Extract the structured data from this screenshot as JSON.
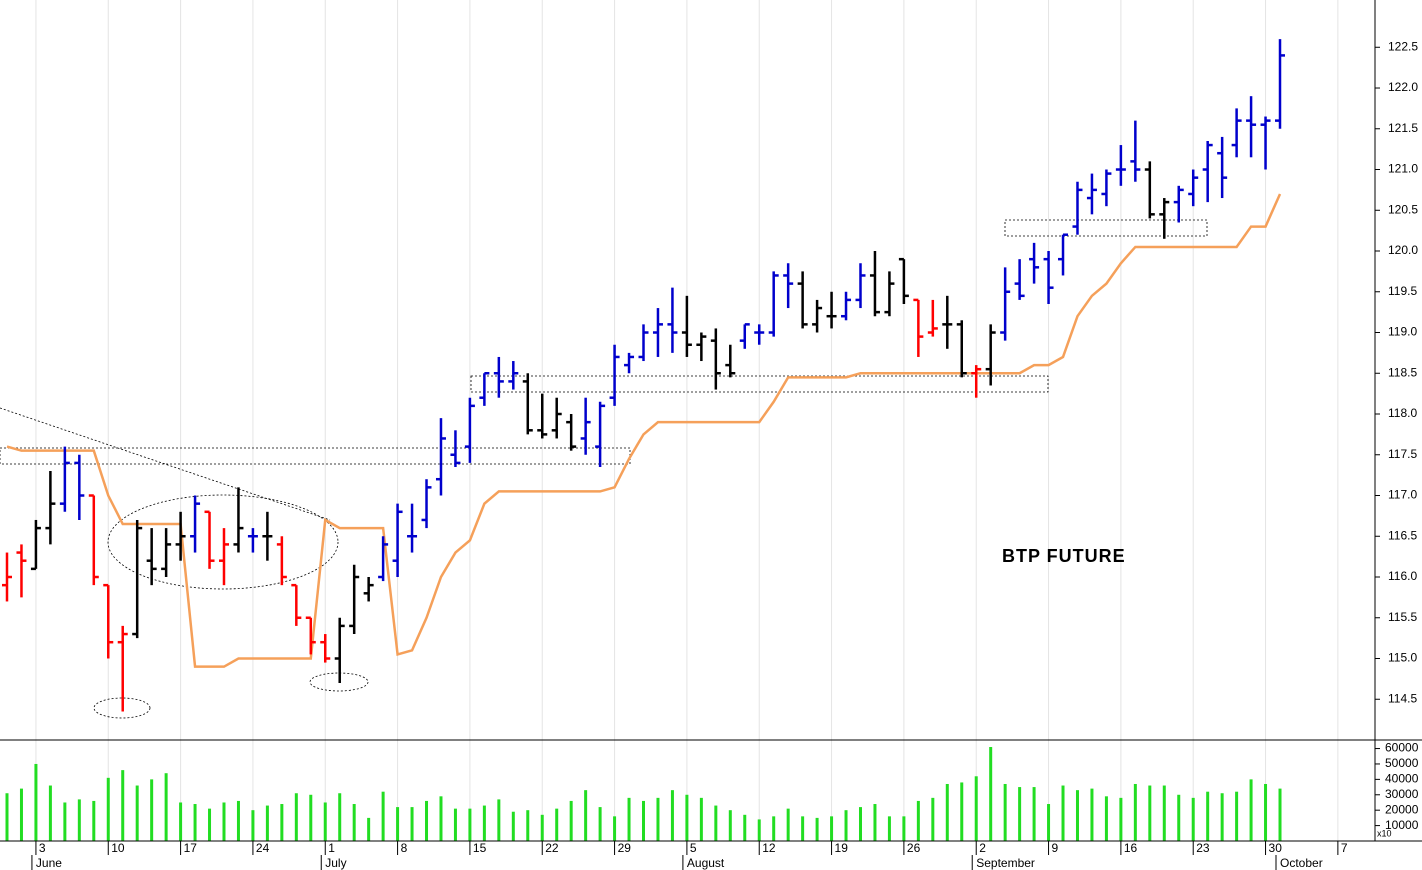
{
  "chart_data": {
    "type": "ohlc",
    "title": "BTP FUTURE",
    "categories": [
      null,
      null,
      "3",
      null,
      null,
      null,
      null,
      "10",
      null,
      null,
      null,
      null,
      "17",
      null,
      null,
      null,
      null,
      "24",
      null,
      null,
      null,
      null,
      "1",
      null,
      null,
      null,
      null,
      "8",
      null,
      null,
      null,
      null,
      "15",
      null,
      null,
      null,
      null,
      "22",
      null,
      null,
      null,
      null,
      "29",
      null,
      null,
      null,
      null,
      "5",
      null,
      null,
      null,
      null,
      "12",
      null,
      null,
      null,
      null,
      "19",
      null,
      null,
      null,
      null,
      "26",
      null,
      null,
      null,
      null,
      "2",
      null,
      null,
      null,
      null,
      "9",
      null,
      null,
      null,
      null,
      "16",
      null,
      null,
      null,
      null,
      "23",
      null,
      null,
      null,
      null,
      "30",
      null,
      null,
      null,
      null,
      "7",
      null,
      null
    ],
    "months": [
      {
        "label": "June",
        "index": 2
      },
      {
        "label": "July",
        "index": 22
      },
      {
        "label": "August",
        "index": 47
      },
      {
        "label": "September",
        "index": 67
      },
      {
        "label": "October",
        "index": 88
      }
    ],
    "open": [
      115.9,
      116.3,
      116.1,
      116.6,
      116.9,
      117.4,
      117.0,
      115.9,
      115.2,
      115.3,
      116.2,
      116.1,
      116.4,
      116.5,
      116.8,
      116.2,
      116.4,
      116.5,
      116.5,
      116.4,
      115.9,
      115.5,
      115.2,
      115.0,
      115.4,
      115.8,
      116.0,
      116.2,
      116.5,
      116.7,
      117.2,
      117.5,
      117.6,
      118.2,
      118.5,
      118.4,
      118.4,
      117.8,
      117.8,
      117.9,
      117.7,
      117.6,
      118.2,
      118.6,
      118.7,
      119.0,
      119.1,
      119.0,
      118.85,
      118.9,
      118.6,
      118.9,
      119.0,
      119.0,
      119.7,
      119.6,
      119.1,
      119.2,
      119.2,
      119.4,
      119.7,
      119.25,
      119.9,
      119.4,
      119.0,
      119.1,
      119.1,
      118.5,
      118.55,
      119.0,
      119.6,
      119.9,
      119.9,
      119.9,
      120.3,
      120.65,
      120.7,
      121.0,
      121.1,
      121.0,
      120.45,
      120.6,
      120.7,
      121.0,
      121.2,
      121.3,
      121.6,
      121.55,
      121.6,
      null,
      null,
      null,
      null,
      null,
      null
    ],
    "high": [
      116.3,
      116.4,
      116.7,
      117.3,
      117.6,
      117.5,
      117.0,
      115.9,
      115.4,
      116.7,
      116.6,
      116.6,
      116.8,
      117.0,
      116.8,
      116.6,
      117.1,
      116.6,
      116.8,
      116.5,
      115.9,
      115.5,
      115.3,
      115.5,
      116.15,
      116.0,
      116.5,
      116.9,
      116.9,
      117.2,
      117.95,
      117.8,
      118.2,
      118.5,
      118.7,
      118.65,
      118.5,
      118.25,
      118.2,
      118.0,
      118.2,
      118.15,
      118.85,
      118.75,
      119.1,
      119.3,
      119.55,
      119.45,
      119.0,
      119.05,
      118.85,
      119.1,
      119.1,
      119.75,
      119.85,
      119.75,
      119.4,
      119.5,
      119.5,
      119.85,
      120.0,
      119.75,
      119.9,
      119.4,
      119.4,
      119.45,
      119.15,
      118.6,
      119.1,
      119.8,
      119.9,
      120.1,
      120.0,
      120.2,
      120.85,
      120.95,
      121.0,
      121.3,
      121.6,
      121.1,
      120.65,
      120.8,
      121.0,
      121.35,
      121.4,
      121.75,
      121.9,
      121.65,
      122.6,
      null,
      null,
      null,
      null,
      null,
      null
    ],
    "low": [
      115.7,
      115.75,
      116.1,
      116.4,
      116.8,
      116.7,
      115.9,
      115.0,
      114.35,
      115.25,
      115.9,
      116.0,
      116.2,
      116.3,
      116.1,
      115.9,
      116.3,
      116.3,
      116.2,
      115.9,
      115.4,
      115.05,
      114.95,
      114.7,
      115.3,
      115.7,
      115.95,
      116.0,
      116.3,
      116.6,
      117.0,
      117.35,
      117.4,
      118.1,
      118.2,
      118.3,
      117.75,
      117.7,
      117.7,
      117.55,
      117.5,
      117.35,
      118.1,
      118.5,
      118.65,
      118.7,
      118.75,
      118.7,
      118.65,
      118.3,
      118.45,
      118.8,
      118.85,
      118.95,
      119.3,
      119.05,
      119.0,
      119.05,
      119.15,
      119.3,
      119.2,
      119.2,
      119.35,
      118.7,
      118.95,
      118.8,
      118.45,
      118.2,
      118.35,
      118.9,
      119.4,
      119.6,
      119.35,
      119.7,
      120.2,
      120.45,
      120.55,
      120.8,
      120.85,
      120.4,
      120.15,
      120.35,
      120.55,
      120.6,
      120.65,
      121.15,
      121.15,
      121.0,
      121.5,
      null,
      null,
      null,
      null,
      null,
      null
    ],
    "close": [
      116.0,
      116.2,
      116.6,
      116.9,
      117.4,
      117.0,
      116.0,
      115.2,
      115.3,
      116.6,
      116.1,
      116.4,
      116.5,
      116.9,
      116.2,
      116.4,
      116.6,
      116.5,
      116.5,
      116.0,
      115.5,
      115.2,
      115.0,
      115.4,
      116.0,
      115.9,
      116.4,
      116.8,
      116.5,
      117.1,
      117.7,
      117.4,
      118.1,
      118.5,
      118.4,
      118.5,
      117.8,
      117.75,
      118.0,
      117.6,
      117.9,
      118.1,
      118.7,
      118.7,
      119.0,
      119.1,
      119.0,
      118.85,
      118.95,
      118.5,
      118.5,
      119.1,
      119.0,
      119.7,
      119.6,
      119.1,
      119.3,
      119.2,
      119.4,
      119.7,
      119.25,
      119.6,
      119.45,
      118.95,
      119.05,
      119.1,
      118.5,
      118.55,
      119.0,
      119.5,
      119.45,
      119.8,
      119.55,
      120.2,
      120.75,
      120.75,
      120.95,
      121.0,
      121.0,
      120.45,
      120.6,
      120.75,
      120.9,
      121.3,
      120.9,
      121.6,
      121.55,
      121.6,
      122.4,
      null,
      null,
      null,
      null,
      null,
      null
    ],
    "bar_colors": [
      "#ff0000",
      "#ff0000",
      "#000000",
      "#000000",
      "#0000cc",
      "#0000cc",
      "#ff0000",
      "#ff0000",
      "#ff0000",
      "#000000",
      "#000000",
      "#000000",
      "#000000",
      "#0000cc",
      "#ff0000",
      "#ff0000",
      "#000000",
      "#0000cc",
      "#000000",
      "#ff0000",
      "#ff0000",
      "#ff0000",
      "#ff0000",
      "#000000",
      "#000000",
      "#000000",
      "#0000cc",
      "#0000cc",
      "#0000cc",
      "#0000cc",
      "#0000cc",
      "#0000cc",
      "#0000cc",
      "#0000cc",
      "#0000cc",
      "#0000cc",
      "#000000",
      "#000000",
      "#000000",
      "#000000",
      "#0000cc",
      "#0000cc",
      "#0000cc",
      "#0000cc",
      "#0000cc",
      "#0000cc",
      "#0000cc",
      "#000000",
      "#000000",
      "#000000",
      "#000000",
      "#0000cc",
      "#0000cc",
      "#0000cc",
      "#0000cc",
      "#000000",
      "#000000",
      "#000000",
      "#0000cc",
      "#0000cc",
      "#000000",
      "#000000",
      "#000000",
      "#ff0000",
      "#ff0000",
      "#000000",
      "#000000",
      "#ff0000",
      "#000000",
      "#0000cc",
      "#0000cc",
      "#0000cc",
      "#0000cc",
      "#0000cc",
      "#0000cc",
      "#0000cc",
      "#0000cc",
      "#0000cc",
      "#0000cc",
      "#000000",
      "#000000",
      "#0000cc",
      "#0000cc",
      "#0000cc",
      "#0000cc",
      "#0000cc",
      "#0000cc",
      "#0000cc",
      "#0000cc",
      null,
      null,
      null,
      null,
      null,
      null
    ],
    "stop_line": {
      "color": "#f5a05a",
      "values": [
        117.6,
        117.55,
        117.55,
        117.55,
        117.55,
        117.55,
        117.55,
        117.0,
        116.65,
        116.65,
        116.65,
        116.65,
        116.65,
        114.9,
        114.9,
        114.9,
        115.0,
        115.0,
        115.0,
        115.0,
        115.0,
        115.0,
        116.7,
        116.6,
        116.6,
        116.6,
        116.6,
        115.05,
        115.1,
        115.5,
        116.0,
        116.3,
        116.45,
        116.9,
        117.05,
        117.05,
        117.05,
        117.05,
        117.05,
        117.05,
        117.05,
        117.05,
        117.1,
        117.45,
        117.75,
        117.9,
        117.9,
        117.9,
        117.9,
        117.9,
        117.9,
        117.9,
        117.9,
        118.15,
        118.45,
        118.45,
        118.45,
        118.45,
        118.45,
        118.5,
        118.5,
        118.5,
        118.5,
        118.5,
        118.5,
        118.5,
        118.5,
        118.5,
        118.5,
        118.5,
        118.5,
        118.6,
        118.6,
        118.7,
        119.2,
        119.45,
        119.6,
        119.85,
        120.05,
        120.05,
        120.05,
        120.05,
        120.05,
        120.05,
        120.05,
        120.05,
        120.3,
        120.3,
        120.7,
        null,
        null,
        null,
        null,
        null,
        null
      ]
    },
    "ylim": [
      114.0,
      123.08
    ],
    "yticks": [
      114.5,
      {
        "value": 115,
        "label": "115.0"
      },
      115.5,
      {
        "value": 116,
        "label": "116.0"
      },
      116.5,
      {
        "value": 117,
        "label": "117.0"
      },
      117.5,
      {
        "value": 118,
        "label": "118.0"
      },
      118.5,
      {
        "value": 119,
        "label": "119.0"
      },
      119.5,
      {
        "value": 120,
        "label": "120.0"
      },
      120.5,
      {
        "value": 121,
        "label": "121.0"
      },
      121.5,
      {
        "value": 122,
        "label": "122.0"
      },
      122.5
    ],
    "grid": true,
    "volume": {
      "color": "#22dd22",
      "scale_label": "x10",
      "values": [
        31000,
        34000,
        50000,
        36000,
        25000,
        27000,
        26000,
        41000,
        46000,
        36000,
        40000,
        44000,
        25000,
        24000,
        21000,
        25000,
        26000,
        20000,
        23000,
        24000,
        31000,
        30000,
        25000,
        31000,
        24000,
        15000,
        32000,
        22000,
        22000,
        26000,
        29000,
        21000,
        21000,
        23000,
        27000,
        19000,
        20000,
        17000,
        21000,
        26000,
        33000,
        22000,
        16000,
        28000,
        26000,
        28000,
        33000,
        30000,
        28000,
        23000,
        20000,
        17000,
        14000,
        16000,
        21000,
        16000,
        15000,
        16000,
        20000,
        22000,
        24000,
        16000,
        16000,
        26000,
        28000,
        37000,
        38000,
        42000,
        61000,
        37000,
        35000,
        35000,
        24000,
        36000,
        33000,
        34000,
        29000,
        28000,
        37000,
        36000,
        36000,
        30000,
        28000,
        32000,
        31000,
        32000,
        40000,
        37000,
        34000,
        null,
        null,
        null,
        null,
        null,
        null
      ],
      "ylim": [
        0,
        64900
      ],
      "yticks": [
        10000,
        20000,
        30000,
        40000,
        50000,
        60000
      ]
    }
  }
}
